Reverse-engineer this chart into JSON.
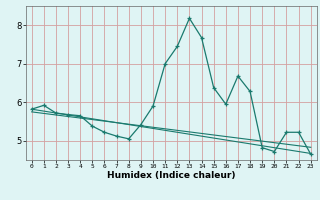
{
  "x": [
    0,
    1,
    2,
    3,
    4,
    5,
    6,
    7,
    8,
    9,
    10,
    11,
    12,
    13,
    14,
    15,
    16,
    17,
    18,
    19,
    20,
    21,
    22,
    23
  ],
  "y_main": [
    5.82,
    5.92,
    5.72,
    5.68,
    5.65,
    5.38,
    5.22,
    5.12,
    5.05,
    5.42,
    5.9,
    7.0,
    7.45,
    8.18,
    7.68,
    6.38,
    5.95,
    6.68,
    6.28,
    4.82,
    4.72,
    5.22,
    5.22,
    4.65
  ],
  "y_reg1": [
    5.82,
    5.77,
    5.72,
    5.67,
    5.62,
    5.57,
    5.52,
    5.47,
    5.42,
    5.37,
    5.32,
    5.27,
    5.22,
    5.17,
    5.12,
    5.07,
    5.02,
    4.97,
    4.92,
    4.87,
    4.82,
    4.77,
    4.72,
    4.67
  ],
  "y_reg2": [
    5.75,
    5.71,
    5.67,
    5.63,
    5.59,
    5.55,
    5.51,
    5.47,
    5.43,
    5.39,
    5.35,
    5.31,
    5.27,
    5.23,
    5.19,
    5.15,
    5.11,
    5.07,
    5.03,
    4.99,
    4.95,
    4.91,
    4.87,
    4.83
  ],
  "line_color": "#1a7a6e",
  "bg_color": "#dff4f4",
  "grid_color": "#d4a0a0",
  "xlabel": "Humidex (Indice chaleur)",
  "xlim": [
    -0.5,
    23.5
  ],
  "ylim": [
    4.5,
    8.5
  ],
  "yticks": [
    5,
    6,
    7,
    8
  ],
  "xticks": [
    0,
    1,
    2,
    3,
    4,
    5,
    6,
    7,
    8,
    9,
    10,
    11,
    12,
    13,
    14,
    15,
    16,
    17,
    18,
    19,
    20,
    21,
    22,
    23
  ]
}
